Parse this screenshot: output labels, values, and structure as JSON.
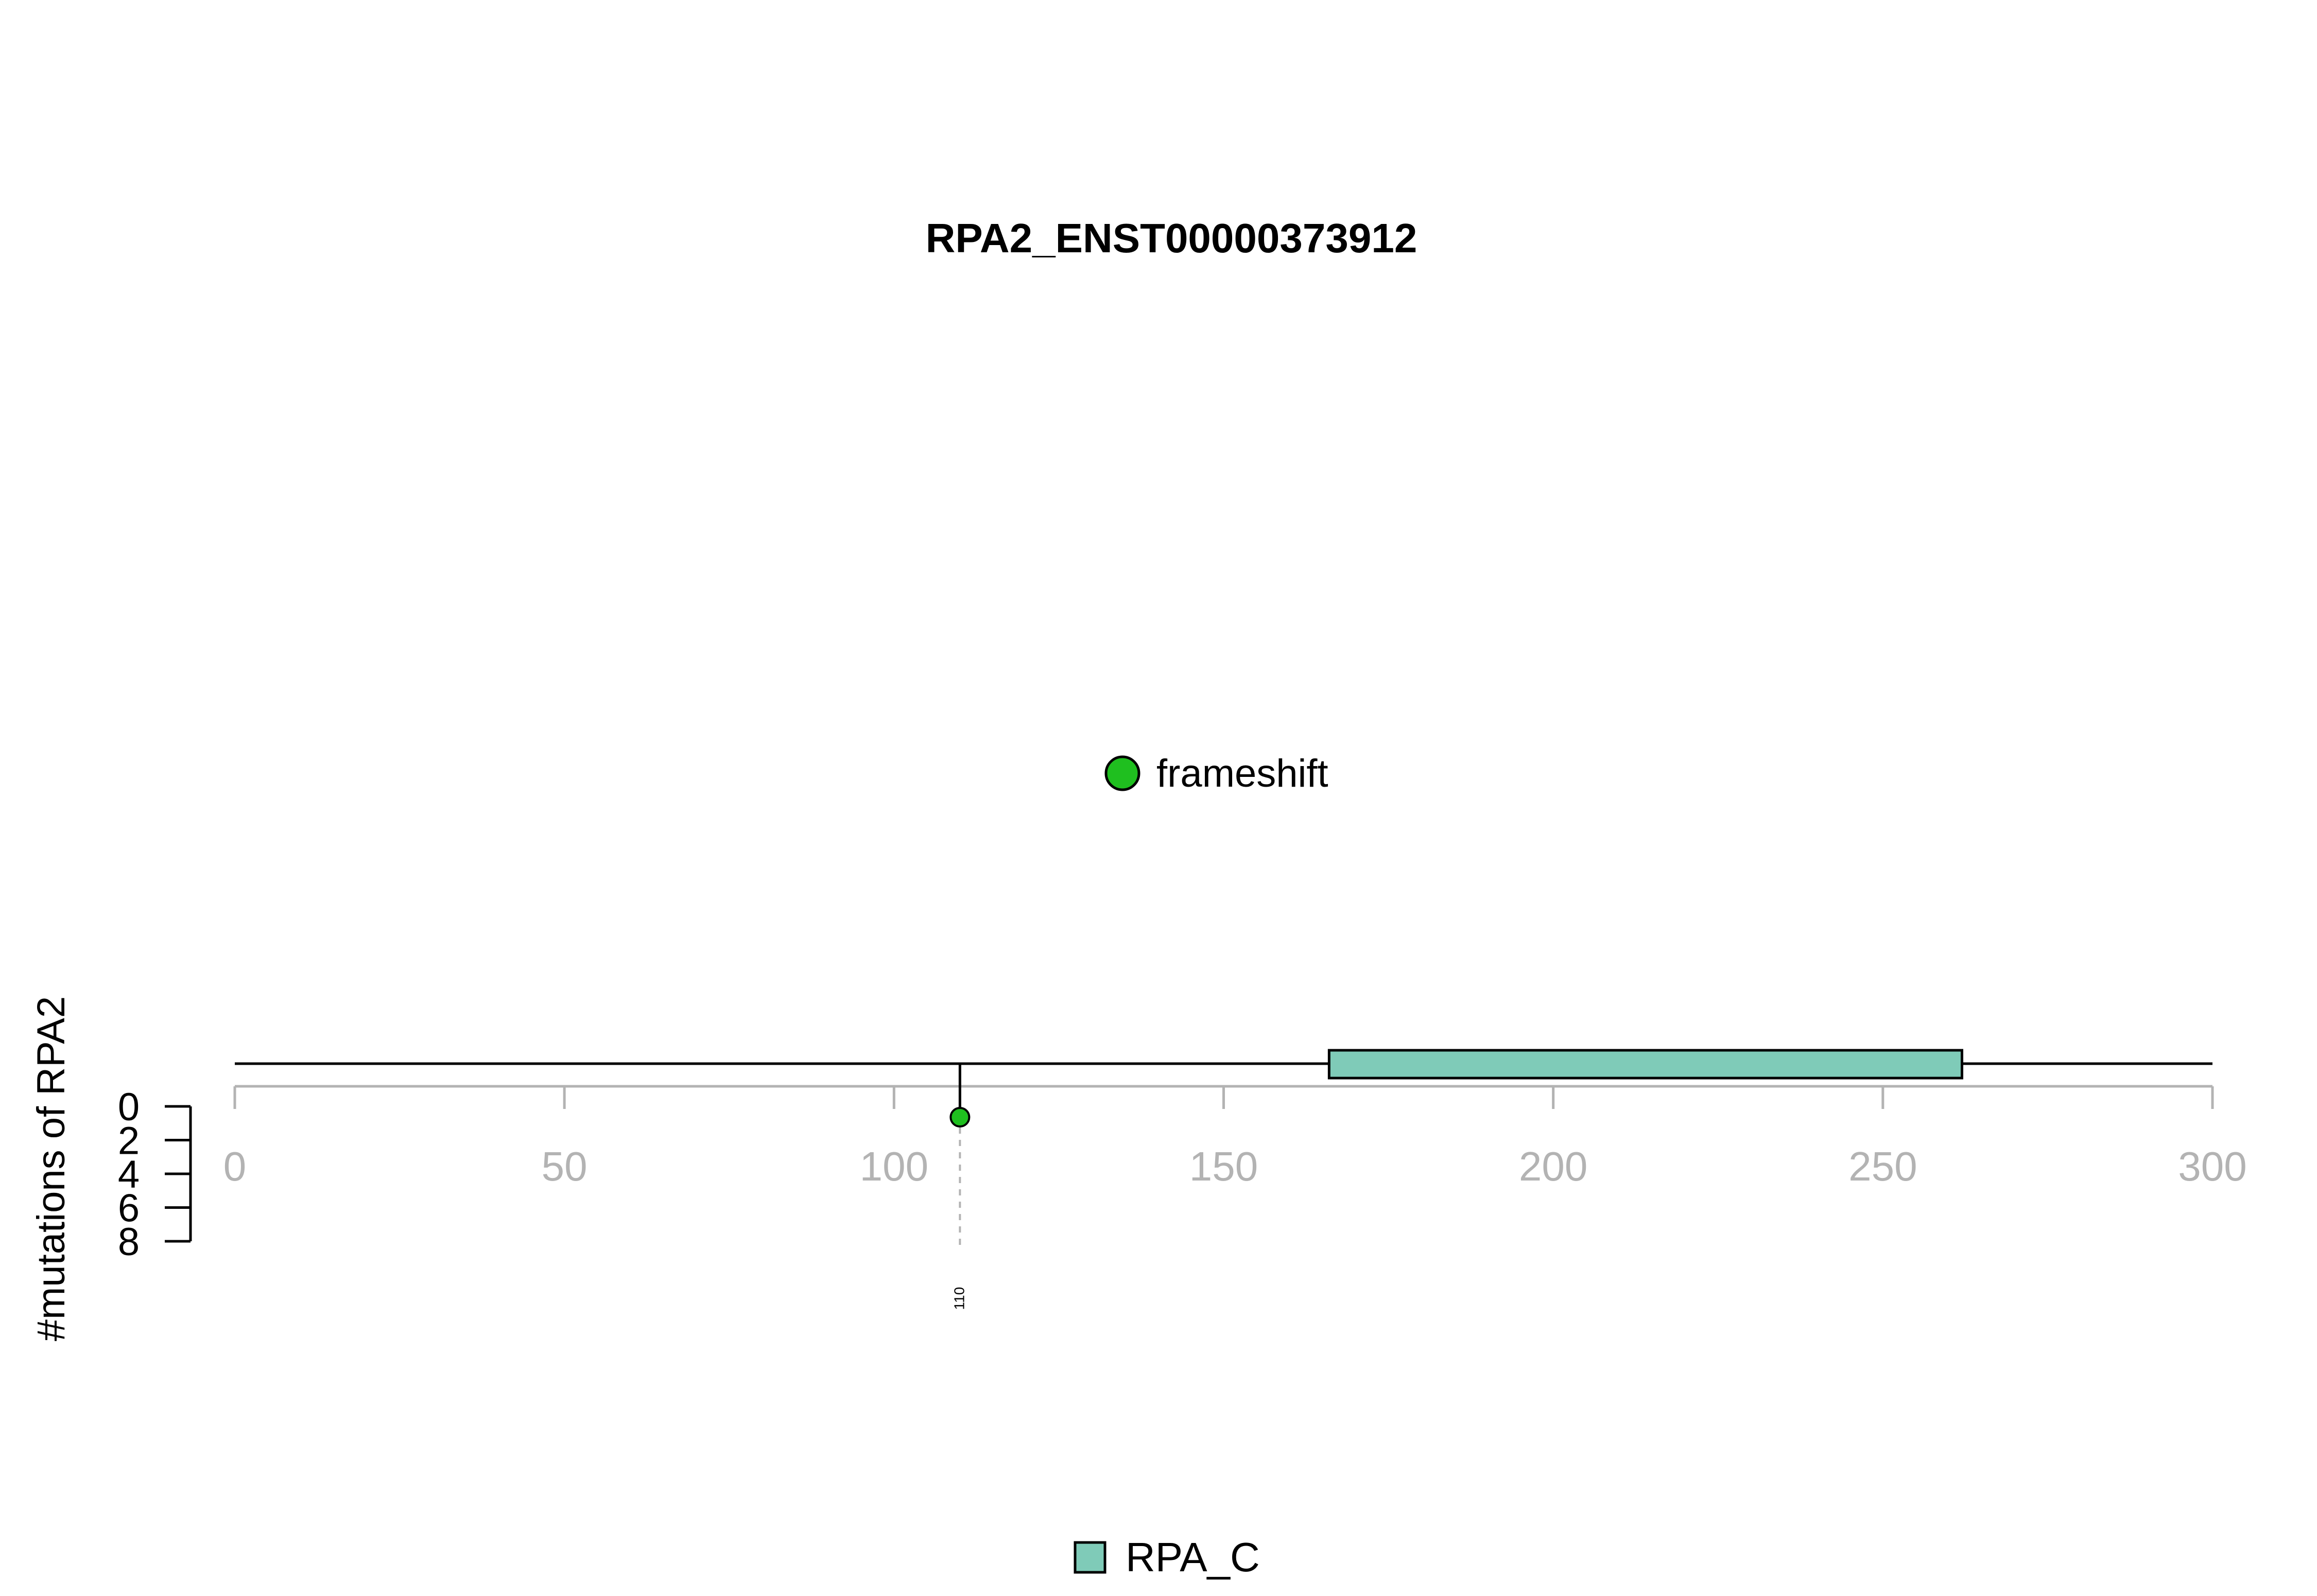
{
  "chart_data": {
    "type": "lollipop",
    "title": "RPA2_ENST00000373912",
    "ylabel": "#mutations of RPA2",
    "x_ticks": [
      0,
      50,
      100,
      150,
      200,
      250,
      300
    ],
    "xlim": [
      0,
      300
    ],
    "y_ticks": [
      0,
      2,
      4,
      6,
      8
    ],
    "ylim": [
      0,
      8
    ],
    "protein_length": 300,
    "domains": [
      {
        "name": "RPA_C",
        "start": 166,
        "end": 262,
        "color": "#7FCBB8"
      }
    ],
    "mutations": [
      {
        "position": 110,
        "label": "110",
        "count": 1,
        "type": "frameshift",
        "color": "#1FBF1F"
      }
    ],
    "legend_mutation": [
      {
        "label": "frameshift",
        "color": "#1FBF1F"
      }
    ],
    "legend_domain": [
      {
        "label": "RPA_C",
        "color": "#7FCBB8"
      }
    ]
  }
}
